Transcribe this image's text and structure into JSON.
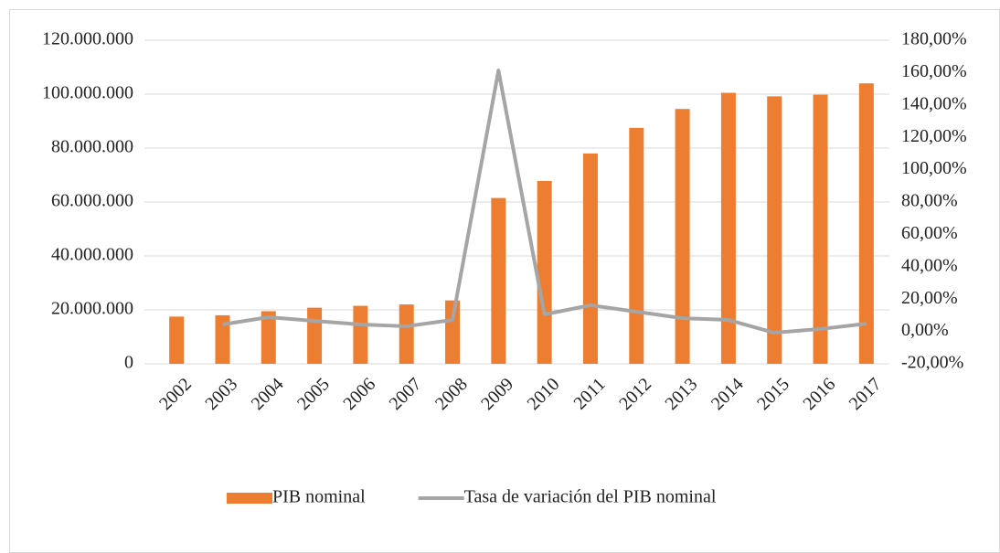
{
  "chart_data": {
    "type": "bar-line",
    "categories": [
      "2002",
      "2003",
      "2004",
      "2005",
      "2006",
      "2007",
      "2008",
      "2009",
      "2010",
      "2011",
      "2012",
      "2013",
      "2014",
      "2015",
      "2016",
      "2017"
    ],
    "series": [
      {
        "name": "PIB nominal",
        "type": "bar",
        "color": "#ed7d31",
        "values": [
          17500000,
          18000000,
          19500000,
          20800000,
          21500000,
          22000000,
          23500000,
          61500000,
          67800000,
          78000000,
          87500000,
          94500000,
          100500000,
          99200000,
          99800000,
          104000000
        ]
      },
      {
        "name": "Tasa de variación del PIB nominal",
        "type": "line",
        "axis": "y2",
        "color": "#a5a5a5",
        "values": [
          null,
          4.3,
          8.8,
          6.5,
          4.3,
          3.2,
          7.1,
          161.3,
          10.5,
          16.2,
          12.2,
          8.2,
          7.1,
          -0.8,
          1.5,
          4.8
        ]
      }
    ],
    "ylim": [
      0,
      120000000
    ],
    "yticks": [
      0,
      {
        "value": 20000000,
        "label": "20.000.000"
      },
      {
        "value": 40000000,
        "label": "40.000.000"
      },
      {
        "value": 60000000,
        "label": "60.000.000"
      },
      {
        "value": 80000000,
        "label": "80.000.000"
      },
      {
        "value": 100000000,
        "label": "100.000.000"
      },
      {
        "value": 120000000,
        "label": "120.000.000"
      }
    ],
    "y2lim": [
      -20,
      180
    ],
    "y2ticks": [
      {
        "value": -20,
        "label": "-20,00%"
      },
      {
        "value": 0,
        "label": "0,00%"
      },
      {
        "value": 20,
        "label": "20,00%"
      },
      {
        "value": 40,
        "label": "40,00%"
      },
      {
        "value": 60,
        "label": "60,00%"
      },
      {
        "value": 80,
        "label": "80,00%"
      },
      {
        "value": 100,
        "label": "100,00%"
      },
      {
        "value": 120,
        "label": "120,00%"
      },
      {
        "value": 140,
        "label": "140,00%"
      },
      {
        "value": 160,
        "label": "160,00%"
      },
      {
        "value": 180,
        "label": "180,00%"
      }
    ],
    "grid": true,
    "legend": "bottom"
  }
}
